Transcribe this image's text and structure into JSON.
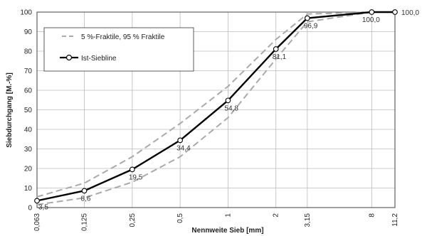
{
  "chart_data": {
    "type": "line",
    "xlabel": "Nennweite Sieb [mm]",
    "ylabel": "Siebdurchgang [M.-%]",
    "x_scale": "log",
    "x_ticks": [
      "0,063",
      "0,125",
      "0,25",
      "0,5",
      "1",
      "2",
      "3,15",
      "8",
      "11,2"
    ],
    "x_values": [
      0.063,
      0.125,
      0.25,
      0.5,
      1,
      2,
      3.15,
      8,
      11.2
    ],
    "ylim": [
      0,
      100
    ],
    "y_ticks": [
      0,
      10,
      20,
      30,
      40,
      50,
      60,
      70,
      80,
      90,
      100
    ],
    "grid": true,
    "legend_position": "top-left",
    "series": [
      {
        "name": "Ist-Siebline",
        "style": "solid",
        "color": "#000000",
        "x": [
          0.063,
          0.125,
          0.25,
          0.5,
          1,
          2,
          3.15,
          8,
          11.2
        ],
        "values": [
          3.5,
          8.6,
          19.5,
          34.4,
          54.8,
          81.1,
          96.9,
          100.0,
          100.0
        ],
        "labels": [
          "3,5",
          "8,6",
          "19,5",
          "34,4",
          "54,8",
          "81,1",
          "96,9",
          "100,0",
          "100,0"
        ]
      },
      {
        "name": "5 %-Fraktile, 95 % Fraktile",
        "style": "dashed",
        "color": "#aaaaaa",
        "x": [
          0.063,
          0.125,
          0.25,
          0.5,
          1,
          2,
          3.15,
          8
        ],
        "values": [
          5.5,
          12.5,
          26,
          43,
          62,
          86,
          99,
          100
        ]
      },
      {
        "name": "",
        "style": "dashed",
        "color": "#aaaaaa",
        "x": [
          0.063,
          0.125,
          0.25,
          0.5,
          1,
          2,
          3.15,
          8
        ],
        "values": [
          1.5,
          5,
          13,
          26,
          46,
          76,
          95,
          100
        ]
      }
    ]
  }
}
